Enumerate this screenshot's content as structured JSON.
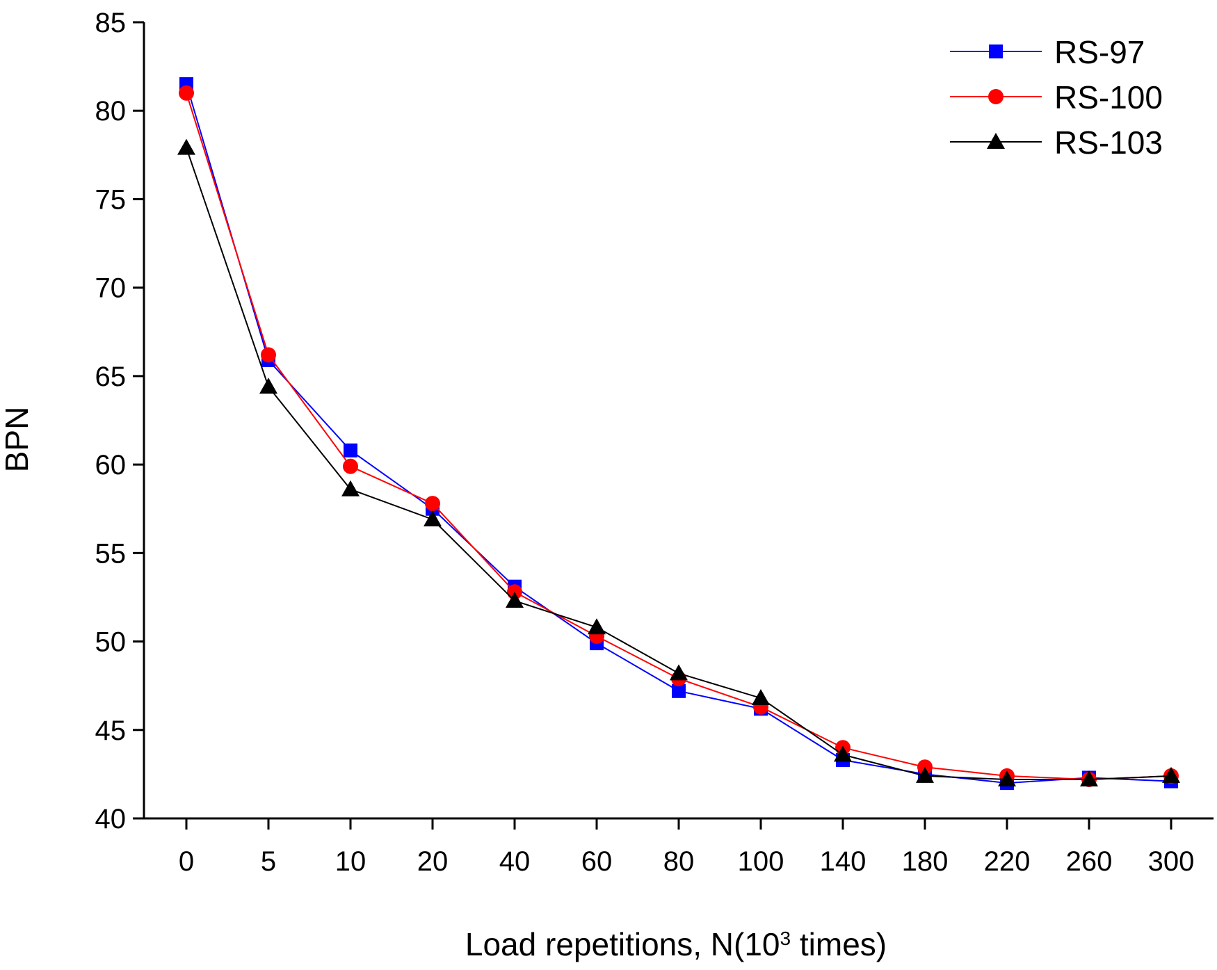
{
  "chart_data": {
    "type": "line",
    "title": "",
    "xlabel": {
      "prefix": "Load repetitions, N(10",
      "superscript": "3",
      "suffix": " times)"
    },
    "ylabel": "BPN",
    "categories": [
      "0",
      "5",
      "10",
      "20",
      "40",
      "60",
      "80",
      "100",
      "140",
      "180",
      "220",
      "260",
      "300"
    ],
    "ylim": [
      40,
      85
    ],
    "yticks": [
      40,
      45,
      50,
      55,
      60,
      65,
      70,
      75,
      80,
      85
    ],
    "grid": false,
    "legend_position": "top-right",
    "series": [
      {
        "name": "RS-97",
        "color": "#0000ff",
        "marker": "square",
        "values": [
          81.5,
          65.9,
          60.8,
          57.5,
          53.1,
          49.9,
          47.2,
          46.2,
          43.3,
          42.5,
          42.0,
          42.3,
          42.1
        ]
      },
      {
        "name": "RS-100",
        "color": "#ff0000",
        "marker": "circle",
        "values": [
          81.0,
          66.2,
          59.9,
          57.8,
          52.8,
          50.3,
          47.9,
          46.3,
          44.0,
          42.9,
          42.4,
          42.2,
          42.4
        ]
      },
      {
        "name": "RS-103",
        "color": "#000000",
        "marker": "triangle",
        "values": [
          77.9,
          64.4,
          58.6,
          56.9,
          52.3,
          50.8,
          48.2,
          46.8,
          43.6,
          42.4,
          42.2,
          42.2,
          42.4
        ]
      }
    ]
  }
}
